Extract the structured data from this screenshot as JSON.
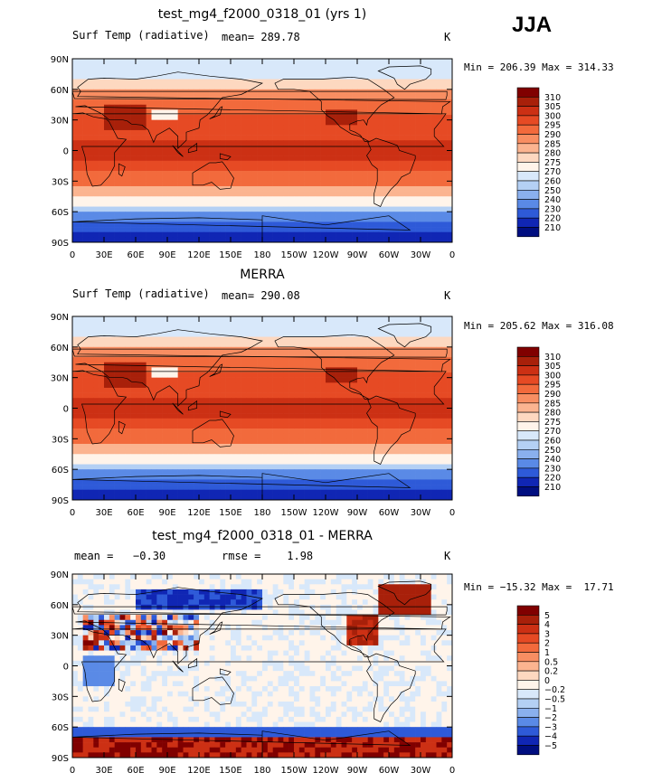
{
  "season": "JJA",
  "units": "K",
  "chart_data": [
    {
      "type": "heatmap",
      "title": "test_mg4_f2000_0318_01 (yrs 1)",
      "left_label": "Surf Temp (radiative)",
      "center_label": "mean= 289.78",
      "right_label": "K",
      "min_max": "Min = 206.39 Max = 314.33",
      "xticks": [
        "0",
        "30E",
        "60E",
        "90E",
        "120E",
        "150E",
        "180",
        "150W",
        "120W",
        "90W",
        "60W",
        "30W",
        "0"
      ],
      "yticks": [
        "90N",
        "60N",
        "30N",
        "0",
        "30S",
        "60S",
        "90S"
      ],
      "colorbar_labels": [
        "310",
        "305",
        "300",
        "295",
        "290",
        "285",
        "280",
        "275",
        "270",
        "260",
        "250",
        "240",
        "230",
        "220",
        "210"
      ],
      "colors": [
        "#800000",
        "#a8200a",
        "#cc3014",
        "#e64a24",
        "#f26a3c",
        "#f88e62",
        "#fbb490",
        "#fdd8c0",
        "#fff4ea",
        "#d8e8fa",
        "#b4d0f4",
        "#8ab0ee",
        "#5a8ae6",
        "#2e5ad8",
        "#1026b4",
        "#000e80"
      ],
      "field": "temp"
    },
    {
      "type": "heatmap",
      "title": "MERRA",
      "left_label": "Surf Temp (radiative)",
      "center_label": "mean= 290.08",
      "right_label": "K",
      "min_max": "Min = 205.62 Max = 316.08",
      "xticks": [
        "0",
        "30E",
        "60E",
        "90E",
        "120E",
        "150E",
        "180",
        "150W",
        "120W",
        "90W",
        "60W",
        "30W",
        "0"
      ],
      "yticks": [
        "90N",
        "60N",
        "30N",
        "0",
        "30S",
        "60S",
        "90S"
      ],
      "colorbar_labels": [
        "310",
        "305",
        "300",
        "295",
        "290",
        "285",
        "280",
        "275",
        "270",
        "260",
        "250",
        "240",
        "230",
        "220",
        "210"
      ],
      "colors": [
        "#800000",
        "#a8200a",
        "#cc3014",
        "#e64a24",
        "#f26a3c",
        "#f88e62",
        "#fbb490",
        "#fdd8c0",
        "#fff4ea",
        "#d8e8fa",
        "#b4d0f4",
        "#8ab0ee",
        "#5a8ae6",
        "#2e5ad8",
        "#1026b4",
        "#000e80"
      ],
      "field": "temp"
    },
    {
      "type": "heatmap",
      "title": "test_mg4_f2000_0318_01 - MERRA",
      "left_label": "mean =   −0.30",
      "center_label": "rmse =    1.98",
      "right_label": "K",
      "min_max": "Min = −15.32 Max =  17.71",
      "xticks": [
        "0",
        "30E",
        "60E",
        "90E",
        "120E",
        "150E",
        "180",
        "150W",
        "120W",
        "90W",
        "60W",
        "30W",
        "0"
      ],
      "yticks": [
        "90N",
        "60N",
        "30N",
        "0",
        "30S",
        "60S",
        "90S"
      ],
      "colorbar_labels": [
        "5",
        "4",
        "3",
        "2",
        "1",
        "0.5",
        "0.2",
        "0",
        "−0.2",
        "−0.5",
        "−1",
        "−2",
        "−3",
        "−4",
        "−5"
      ],
      "colors": [
        "#800000",
        "#a8200a",
        "#cc3014",
        "#e64a24",
        "#f26a3c",
        "#f88e62",
        "#fbb490",
        "#fdd8c0",
        "#fff4ea",
        "#d8e8fa",
        "#b4d0f4",
        "#8ab0ee",
        "#5a8ae6",
        "#2e5ad8",
        "#1026b4",
        "#000e80"
      ],
      "field": "diff"
    }
  ]
}
